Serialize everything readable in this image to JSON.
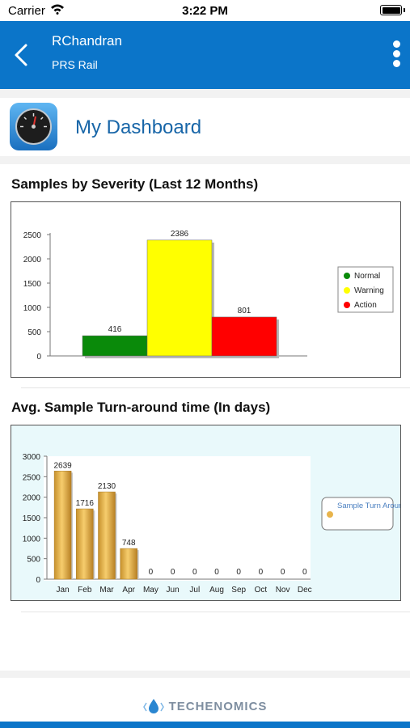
{
  "status_bar": {
    "carrier": "Carrier",
    "time": "3:22 PM"
  },
  "header": {
    "title": "RChandran",
    "subtitle": "PRS Rail"
  },
  "dashboard": {
    "title": "My Dashboard"
  },
  "colors": {
    "brand": "#0b75c9",
    "title_blue": "#1866a8"
  },
  "charts": {
    "severity": {
      "section_title": "Samples by Severity (Last 12 Months)"
    },
    "turnaround": {
      "section_title": "Avg. Sample Turn-around time (In days)"
    }
  },
  "chart_data": [
    {
      "type": "bar",
      "title": "Samples by Severity (Last 12 Months)",
      "categories": [
        "Normal",
        "Warning",
        "Action"
      ],
      "values": [
        416,
        2386,
        801
      ],
      "colors": [
        "#0a8a0a",
        "#ffff00",
        "#ff0000"
      ],
      "ylim": [
        0,
        2500
      ],
      "yticks": [
        0,
        500,
        1000,
        1500,
        2000,
        2500
      ],
      "legend": {
        "position": "right",
        "entries": [
          "Normal",
          "Warning",
          "Action"
        ]
      },
      "grid": false
    },
    {
      "type": "bar",
      "title": "Avg. Sample Turn-around time (In days)",
      "categories": [
        "Jan",
        "Feb",
        "Mar",
        "Apr",
        "May",
        "Jun",
        "Jul",
        "Aug",
        "Sep",
        "Oct",
        "Nov",
        "Dec"
      ],
      "values": [
        2639,
        1716,
        2130,
        748,
        0,
        0,
        0,
        0,
        0,
        0,
        0,
        0
      ],
      "series_name": "Sample Turn Around Time",
      "color": "#e8b44c",
      "ylim": [
        0,
        3000
      ],
      "yticks": [
        0,
        500,
        1000,
        1500,
        2000,
        2500,
        3000
      ],
      "legend": {
        "position": "right",
        "entries": [
          "Sample Turn Around Time"
        ]
      },
      "grid": false
    }
  ],
  "footer": {
    "brand": "TECHENOMICS"
  }
}
